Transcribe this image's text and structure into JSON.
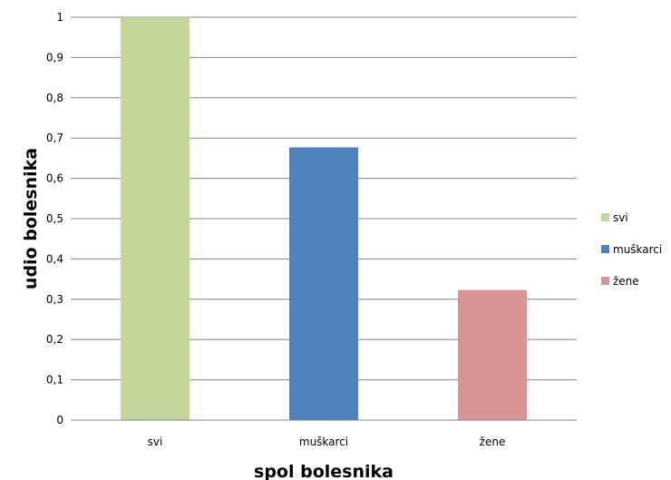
{
  "chart_data": {
    "type": "bar",
    "categories": [
      "svi",
      "muškarci",
      "žene"
    ],
    "values": [
      1.0,
      0.677,
      0.323
    ],
    "colors": [
      "#c3d69b",
      "#4f81bd",
      "#d99594"
    ],
    "xlabel": "spol bolesnika",
    "ylabel": "udio bolesnika",
    "ylim": [
      0,
      1
    ],
    "yticks": [
      "0",
      "0,1",
      "0,2",
      "0,3",
      "0,4",
      "0,5",
      "0,6",
      "0,7",
      "0,8",
      "0,9",
      "1"
    ],
    "grid": true,
    "legend": {
      "placement": "right",
      "entries": [
        "svi",
        "muškarci",
        "žene"
      ]
    }
  }
}
